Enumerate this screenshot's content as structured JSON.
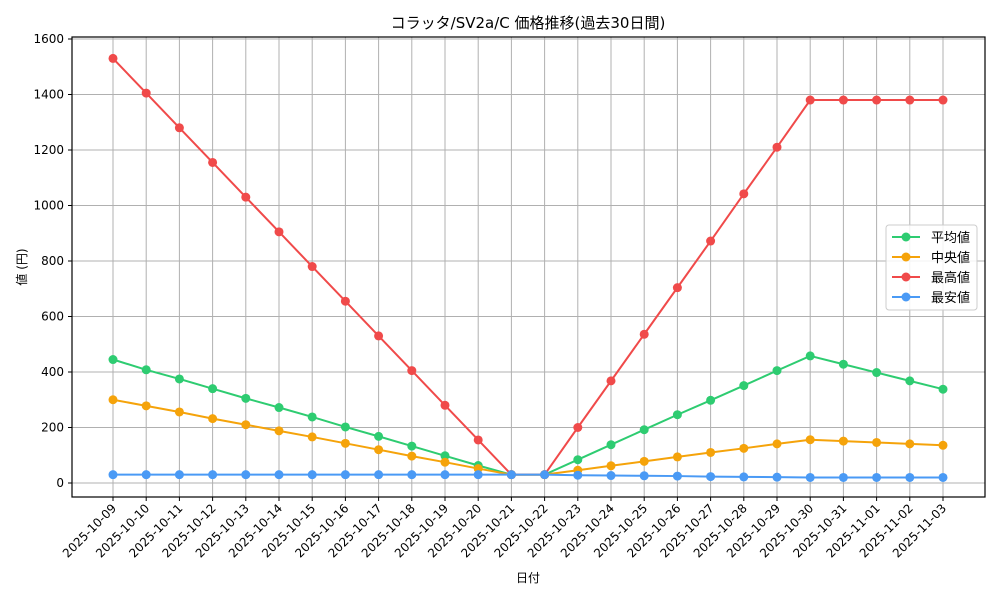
{
  "chart_data": {
    "type": "line",
    "title": "コラッタ/SV2a/C 価格推移(過去30日間)",
    "xlabel": "日付",
    "ylabel": "値 (円)",
    "ylim": [
      -50,
      1600
    ],
    "yticks": [
      0,
      200,
      400,
      600,
      800,
      1000,
      1200,
      1400,
      1600
    ],
    "grid": true,
    "legend_position": "center right",
    "x": [
      "2025-10-09",
      "2025-10-10",
      "2025-10-11",
      "2025-10-12",
      "2025-10-13",
      "2025-10-14",
      "2025-10-15",
      "2025-10-16",
      "2025-10-17",
      "2025-10-18",
      "2025-10-19",
      "2025-10-20",
      "2025-10-21",
      "2025-10-22",
      "2025-10-23",
      "2025-10-24",
      "2025-10-25",
      "2025-10-26",
      "2025-10-27",
      "2025-10-28",
      "2025-10-29",
      "2025-10-30",
      "2025-10-31",
      "2025-11-01",
      "2025-11-02",
      "2025-11-03"
    ],
    "series": [
      {
        "name": "平均値",
        "color": "#2ecc71",
        "values": [
          445,
          408,
          375,
          340,
          305,
          272,
          238,
          202,
          168,
          133,
          98,
          63,
          30,
          30,
          84,
          138,
          192,
          246,
          298,
          351,
          405,
          458,
          428,
          398,
          368,
          338
        ]
      },
      {
        "name": "中央値",
        "color": "#f5a30a",
        "values": [
          300,
          278,
          256,
          232,
          210,
          188,
          166,
          143,
          120,
          97,
          75,
          52,
          30,
          30,
          46,
          62,
          78,
          94,
          110,
          125,
          141,
          156,
          151,
          146,
          141,
          136
        ]
      },
      {
        "name": "最高値",
        "color": "#f04a4a",
        "values": [
          1530,
          1405,
          1280,
          1155,
          1030,
          905,
          780,
          655,
          530,
          405,
          280,
          155,
          30,
          30,
          200,
          368,
          536,
          704,
          872,
          1042,
          1210,
          1380,
          1380,
          1380,
          1380,
          1380
        ]
      },
      {
        "name": "最安値",
        "color": "#4a9af5",
        "values": [
          30,
          30,
          30,
          30,
          30,
          30,
          30,
          30,
          30,
          30,
          30,
          30,
          30,
          30,
          28,
          27,
          26,
          25,
          23,
          22,
          21,
          20,
          20,
          20,
          20,
          20
        ]
      }
    ]
  }
}
